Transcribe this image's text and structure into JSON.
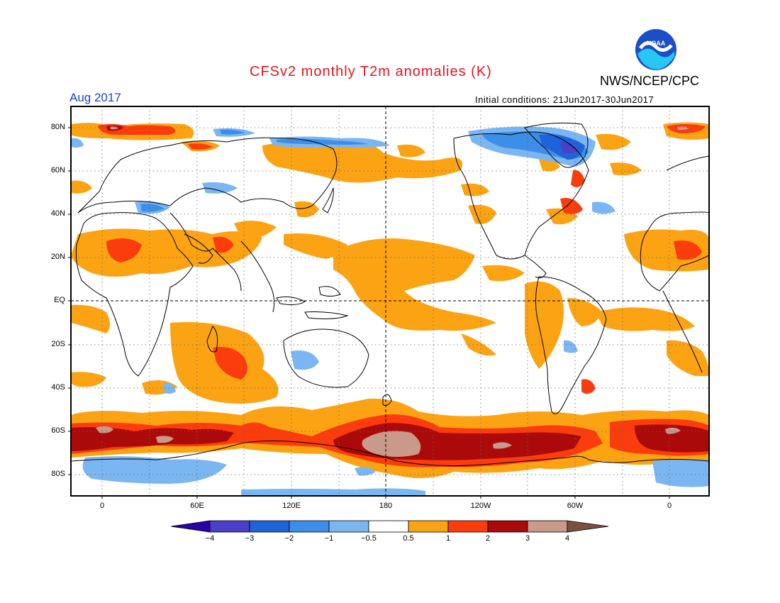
{
  "header": {
    "title": "CFSv2 monthly T2m anomalies (K)",
    "agency": "NWS/NCEP/CPC",
    "logo_text": "NOAA",
    "target_month": "Aug 2017",
    "initial_conditions": "Initial conditions: 21Jun2017-30Jun2017"
  },
  "axes": {
    "lat_labels": [
      "80N",
      "60N",
      "40N",
      "20N",
      "EQ",
      "20S",
      "40S",
      "60S",
      "80S"
    ],
    "lon_labels": [
      "0",
      "60E",
      "120E",
      "180",
      "120W",
      "60W",
      "0"
    ]
  },
  "colorbar": {
    "labels": [
      "−4",
      "−3",
      "−2",
      "−1",
      "−0.5",
      "0.5",
      "1",
      "2",
      "3",
      "4"
    ],
    "colors": [
      "#2b00a6",
      "#4a3fc9",
      "#1f63d8",
      "#3d8ee8",
      "#7ab6f2",
      "#ffffff",
      "#fba313",
      "#fb3c0c",
      "#ab0a0a",
      "#c9998a",
      "#7a5040"
    ]
  },
  "colors": {
    "title": "#e8141b",
    "month": "#1a3fd6",
    "noaa_blue": "#1a4fc8",
    "noaa_cyan": "#27c6f3"
  }
}
